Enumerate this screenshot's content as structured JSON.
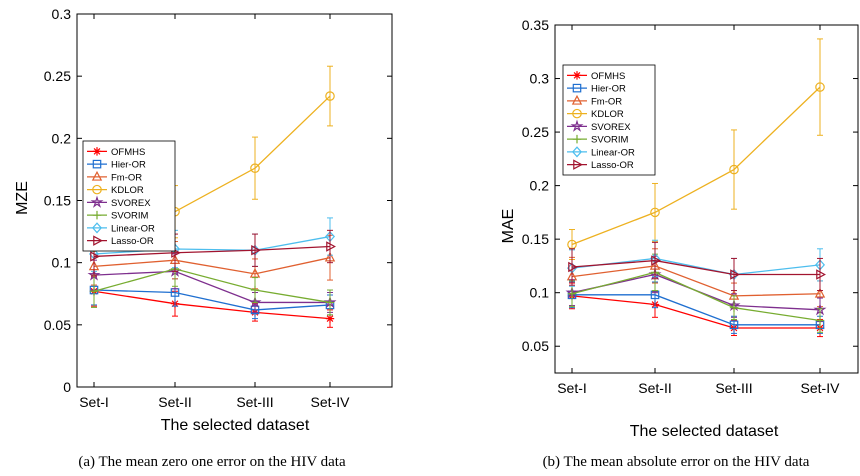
{
  "chart_data": [
    {
      "type": "line",
      "ylabel": "MZE",
      "xlabel": "The selected dataset",
      "caption": "(a) The mean zero one error on the HIV data",
      "categories": [
        "Set-I",
        "Set-II",
        "Set-III",
        "Set-IV"
      ],
      "ylim": [
        0,
        0.3
      ],
      "yticks": [
        0,
        0.05,
        0.1,
        0.15,
        0.2,
        0.25,
        0.3
      ],
      "ytick_labels": [
        "0",
        "0.05",
        "0.1",
        "0.15",
        "0.2",
        "0.25",
        "0.3"
      ],
      "legend_position": "top-left",
      "grid": false,
      "series": [
        {
          "name": "OFMHS",
          "color": "#ff0000",
          "marker": "asterisk",
          "values": [
            0.077,
            0.067,
            0.06,
            0.055
          ],
          "err": [
            0.012,
            0.01,
            0.007,
            0.007
          ]
        },
        {
          "name": "Hier-OR",
          "color": "#1f6fd0",
          "marker": "square",
          "values": [
            0.078,
            0.076,
            0.062,
            0.066
          ],
          "err": [
            0.012,
            0.011,
            0.007,
            0.008
          ]
        },
        {
          "name": "Fm-OR",
          "color": "#e06030",
          "marker": "triangle-up",
          "values": [
            0.097,
            0.102,
            0.091,
            0.104
          ],
          "err": [
            0.015,
            0.015,
            0.012,
            0.018
          ]
        },
        {
          "name": "KDLOR",
          "color": "#edb120",
          "marker": "circle",
          "values": [
            0.12,
            0.141,
            0.176,
            0.234
          ],
          "err": [
            0.011,
            0.021,
            0.025,
            0.024
          ]
        },
        {
          "name": "SVOREX",
          "color": "#7e2f8e",
          "marker": "star",
          "values": [
            0.09,
            0.093,
            0.068,
            0.068
          ],
          "err": [
            0.012,
            0.014,
            0.008,
            0.008
          ]
        },
        {
          "name": "SVORIM",
          "color": "#77ac30",
          "marker": "plus",
          "values": [
            0.077,
            0.095,
            0.078,
            0.068
          ],
          "err": [
            0.013,
            0.014,
            0.01,
            0.01
          ]
        },
        {
          "name": "Linear-OR",
          "color": "#4dbeee",
          "marker": "diamond",
          "values": [
            0.107,
            0.111,
            0.11,
            0.121
          ],
          "err": [
            0.014,
            0.015,
            0.013,
            0.015
          ]
        },
        {
          "name": "Lasso-OR",
          "color": "#a2142f",
          "marker": "triangle-right",
          "values": [
            0.105,
            0.108,
            0.11,
            0.113
          ],
          "err": [
            0.015,
            0.015,
            0.013,
            0.013
          ]
        }
      ]
    },
    {
      "type": "line",
      "ylabel": "MAE",
      "xlabel": "The selected dataset",
      "caption": "(b) The mean absolute error on the HIV data",
      "categories": [
        "Set-I",
        "Set-II",
        "Set-III",
        "Set-IV"
      ],
      "ylim": [
        0.025,
        0.35
      ],
      "yticks": [
        0.05,
        0.1,
        0.15,
        0.2,
        0.25,
        0.3,
        0.35
      ],
      "ytick_labels": [
        "0.05",
        "0.1",
        "0.15",
        "0.2",
        "0.25",
        "0.3",
        "0.35"
      ],
      "legend_position": "top-left",
      "grid": false,
      "series": [
        {
          "name": "OFMHS",
          "color": "#ff0000",
          "marker": "asterisk",
          "values": [
            0.097,
            0.089,
            0.067,
            0.067
          ],
          "err": [
            0.012,
            0.012,
            0.007,
            0.008
          ]
        },
        {
          "name": "Hier-OR",
          "color": "#1f6fd0",
          "marker": "square",
          "values": [
            0.098,
            0.098,
            0.07,
            0.07
          ],
          "err": [
            0.012,
            0.012,
            0.008,
            0.008
          ]
        },
        {
          "name": "Fm-OR",
          "color": "#e06030",
          "marker": "triangle-up",
          "values": [
            0.115,
            0.125,
            0.097,
            0.099
          ],
          "err": [
            0.018,
            0.016,
            0.012,
            0.012
          ]
        },
        {
          "name": "KDLOR",
          "color": "#edb120",
          "marker": "circle",
          "values": [
            0.145,
            0.175,
            0.215,
            0.292
          ],
          "err": [
            0.014,
            0.027,
            0.037,
            0.045
          ]
        },
        {
          "name": "SVOREX",
          "color": "#7e2f8e",
          "marker": "star",
          "values": [
            0.1,
            0.117,
            0.088,
            0.084
          ],
          "err": [
            0.012,
            0.017,
            0.011,
            0.011
          ]
        },
        {
          "name": "SVORIM",
          "color": "#77ac30",
          "marker": "plus",
          "values": [
            0.099,
            0.119,
            0.086,
            0.074
          ],
          "err": [
            0.012,
            0.017,
            0.011,
            0.011
          ]
        },
        {
          "name": "Linear-OR",
          "color": "#4dbeee",
          "marker": "diamond",
          "values": [
            0.123,
            0.132,
            0.117,
            0.126
          ],
          "err": [
            0.017,
            0.017,
            0.015,
            0.015
          ]
        },
        {
          "name": "Lasso-OR",
          "color": "#a2142f",
          "marker": "triangle-right",
          "values": [
            0.124,
            0.13,
            0.117,
            0.117
          ],
          "err": [
            0.017,
            0.017,
            0.015,
            0.015
          ]
        }
      ]
    }
  ]
}
